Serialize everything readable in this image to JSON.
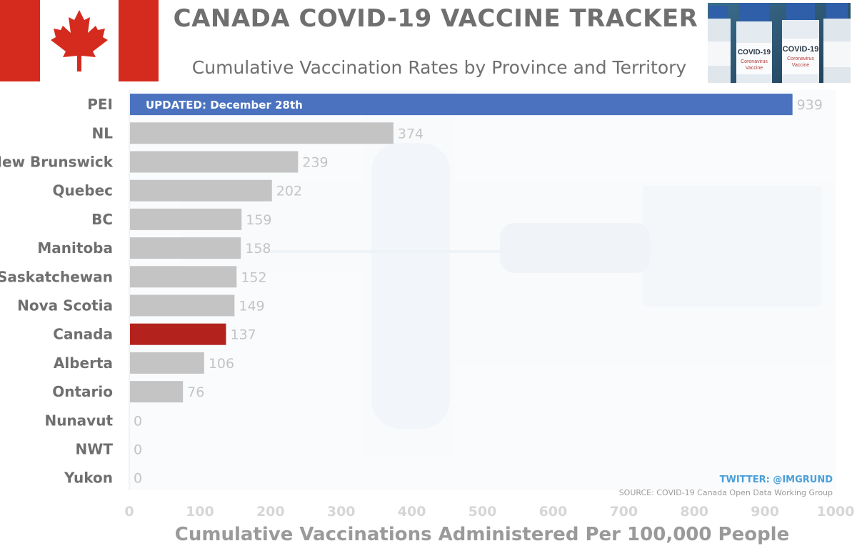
{
  "header": {
    "title": "CANADA COVID-19 VACCINE TRACKER",
    "subtitle": "Cumulative Vaccination Rates by Province and Territory",
    "photo_text": [
      "COVID-19",
      "Coronavirus",
      "Vaccine"
    ]
  },
  "annotations": {
    "updated": "UPDATED: December 28th",
    "twitter": "TWITTER: @IMGRUND",
    "source": "SOURCE: COVID-19 Canada Open Data Working Group"
  },
  "colors": {
    "default_bar": "#c4c4c4",
    "highlight_bar": "#4a72bf",
    "canada_bar": "#b3221c",
    "flag_red": "#d52b1e"
  },
  "chart_data": {
    "type": "bar",
    "orientation": "horizontal",
    "title": "CANADA COVID-19 VACCINE TRACKER",
    "subtitle": "Cumulative Vaccination Rates by Province and Territory",
    "xlabel": "Cumulative Vaccinations Administered Per 100,000 People",
    "ylabel": "",
    "xlim": [
      0,
      1000
    ],
    "xticks": [
      0,
      100,
      200,
      300,
      400,
      500,
      600,
      700,
      800,
      900,
      1000
    ],
    "grid": false,
    "categories": [
      "PEI",
      "NL",
      "New Brunswick",
      "Quebec",
      "BC",
      "Manitoba",
      "Saskatchewan",
      "Nova Scotia",
      "Canada",
      "Alberta",
      "Ontario",
      "Nunavut",
      "NWT",
      "Yukon"
    ],
    "values": [
      939,
      374,
      239,
      202,
      159,
      158,
      152,
      149,
      137,
      106,
      76,
      0,
      0,
      0
    ],
    "highlighted": {
      "PEI": "highlight_bar",
      "Canada": "canada_bar"
    }
  }
}
